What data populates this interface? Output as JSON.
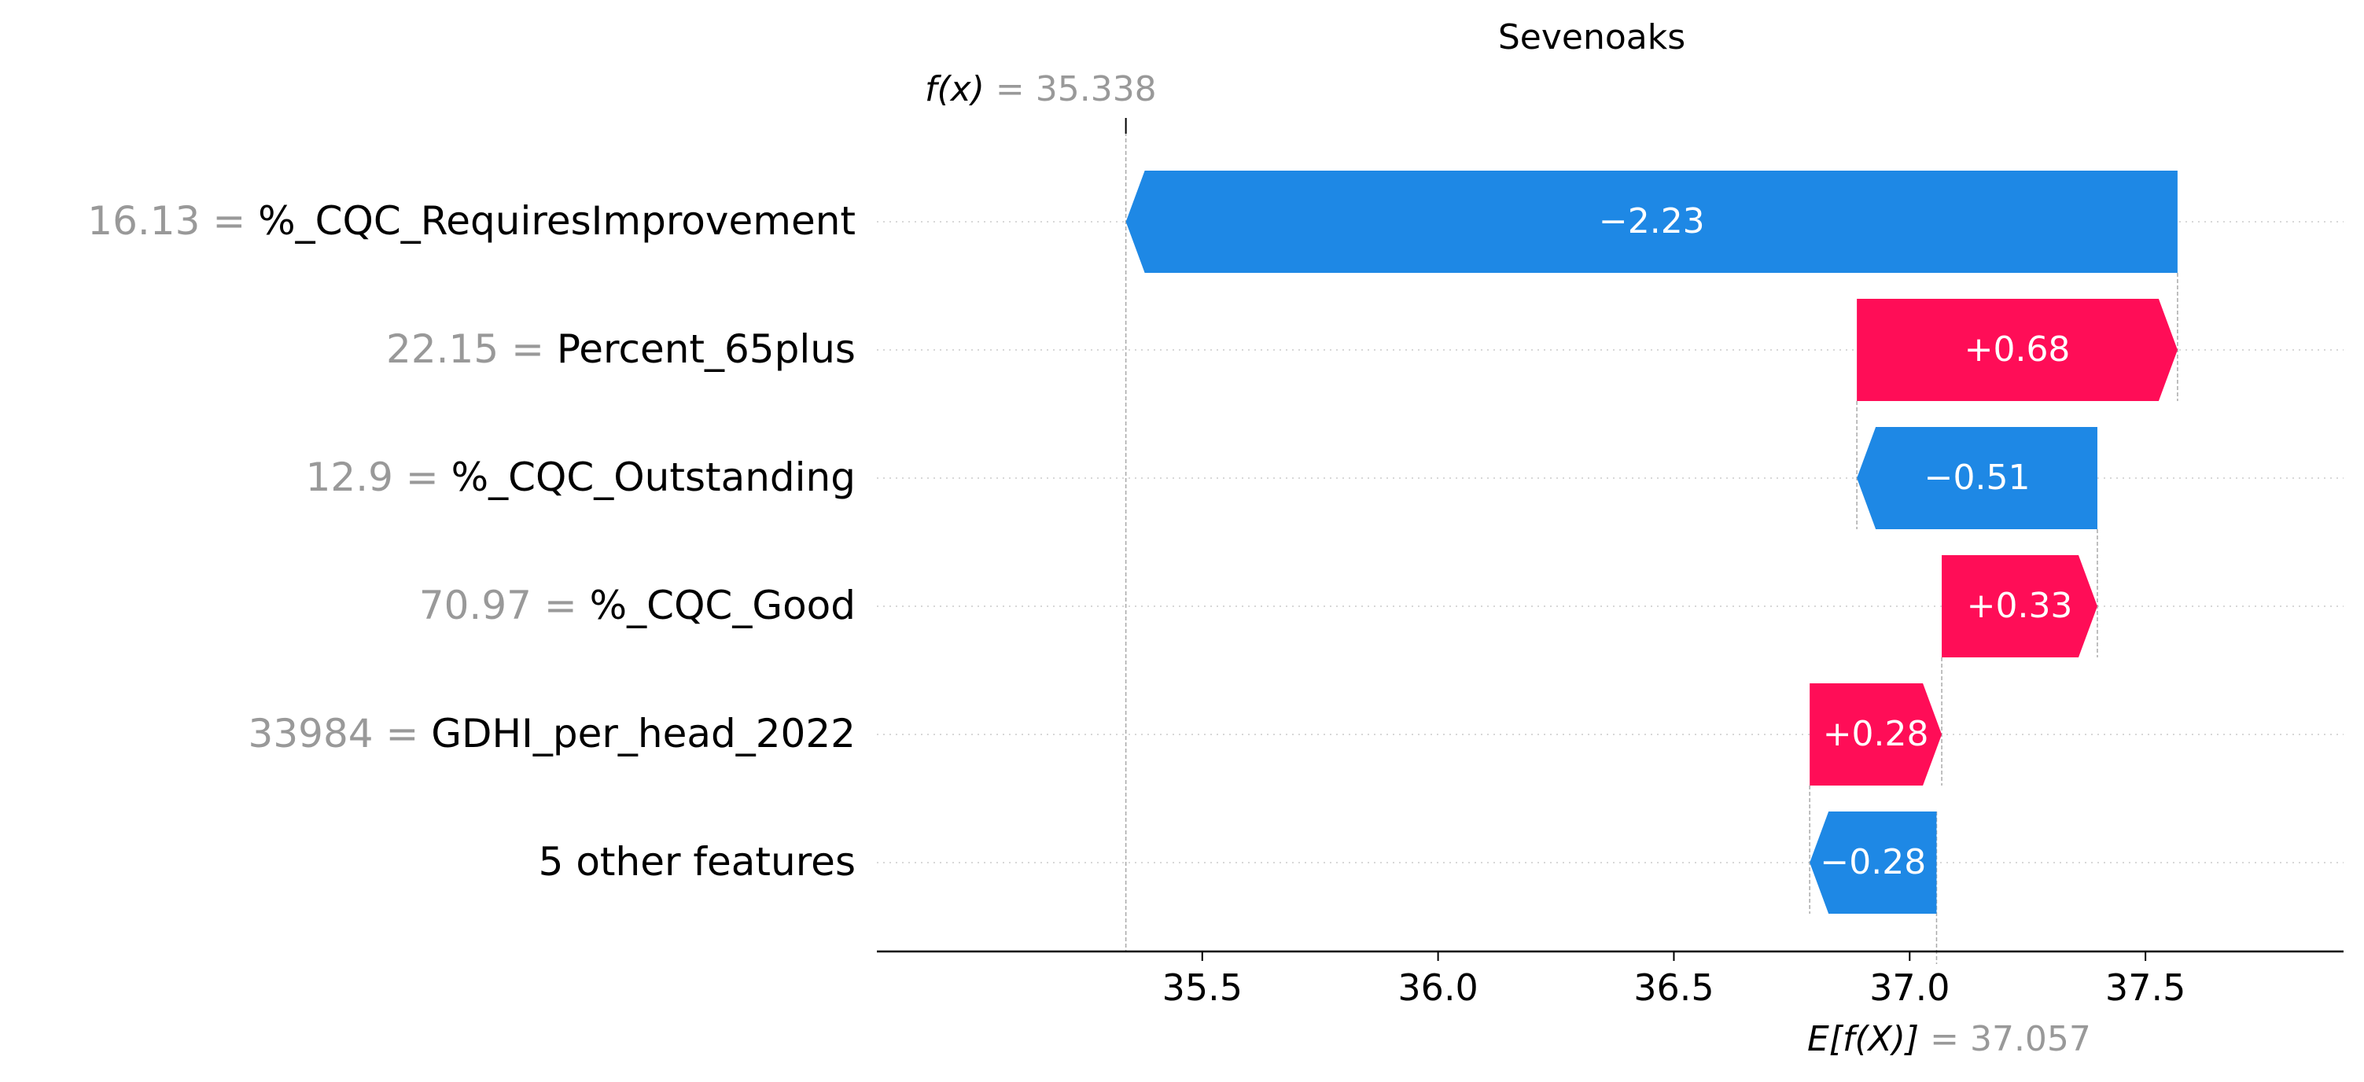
{
  "chart_data": {
    "type": "waterfall",
    "title": "Sevenoaks",
    "fx_label": "f(x)",
    "fx_value": "35.338",
    "ex_label": "E[f(X)]",
    "ex_value": "37.057",
    "base_value": 37.057,
    "final_value": 35.338,
    "xlim": [
      34.81,
      37.92
    ],
    "xticks": [
      35.5,
      36.0,
      36.5,
      37.0,
      37.5
    ],
    "xtick_labels": [
      "35.5",
      "36.0",
      "36.5",
      "37.0",
      "37.5"
    ],
    "colors": {
      "positive": "#ff0d57",
      "negative": "#1e88e5"
    },
    "features": [
      {
        "value": "16.13",
        "name": "%_CQC_RequiresImprovement",
        "contribution": -2.23,
        "label": "−2.23",
        "start": 37.568,
        "end": 35.338
      },
      {
        "value": "22.15",
        "name": "Percent_65plus",
        "contribution": 0.68,
        "label": "+0.68",
        "start": 36.888,
        "end": 37.568
      },
      {
        "value": "12.9",
        "name": "%_CQC_Outstanding",
        "contribution": -0.51,
        "label": "−0.51",
        "start": 37.398,
        "end": 36.888
      },
      {
        "value": "70.97",
        "name": "%_CQC_Good",
        "contribution": 0.33,
        "label": "+0.33",
        "start": 37.068,
        "end": 37.398
      },
      {
        "value": "33984",
        "name": "GDHI_per_head_2022",
        "contribution": 0.28,
        "label": "+0.28",
        "start": 36.788,
        "end": 37.068
      },
      {
        "value": "",
        "name": "5 other features",
        "contribution": -0.28,
        "label": "−0.28",
        "start": 37.057,
        "end": 36.788
      }
    ]
  }
}
